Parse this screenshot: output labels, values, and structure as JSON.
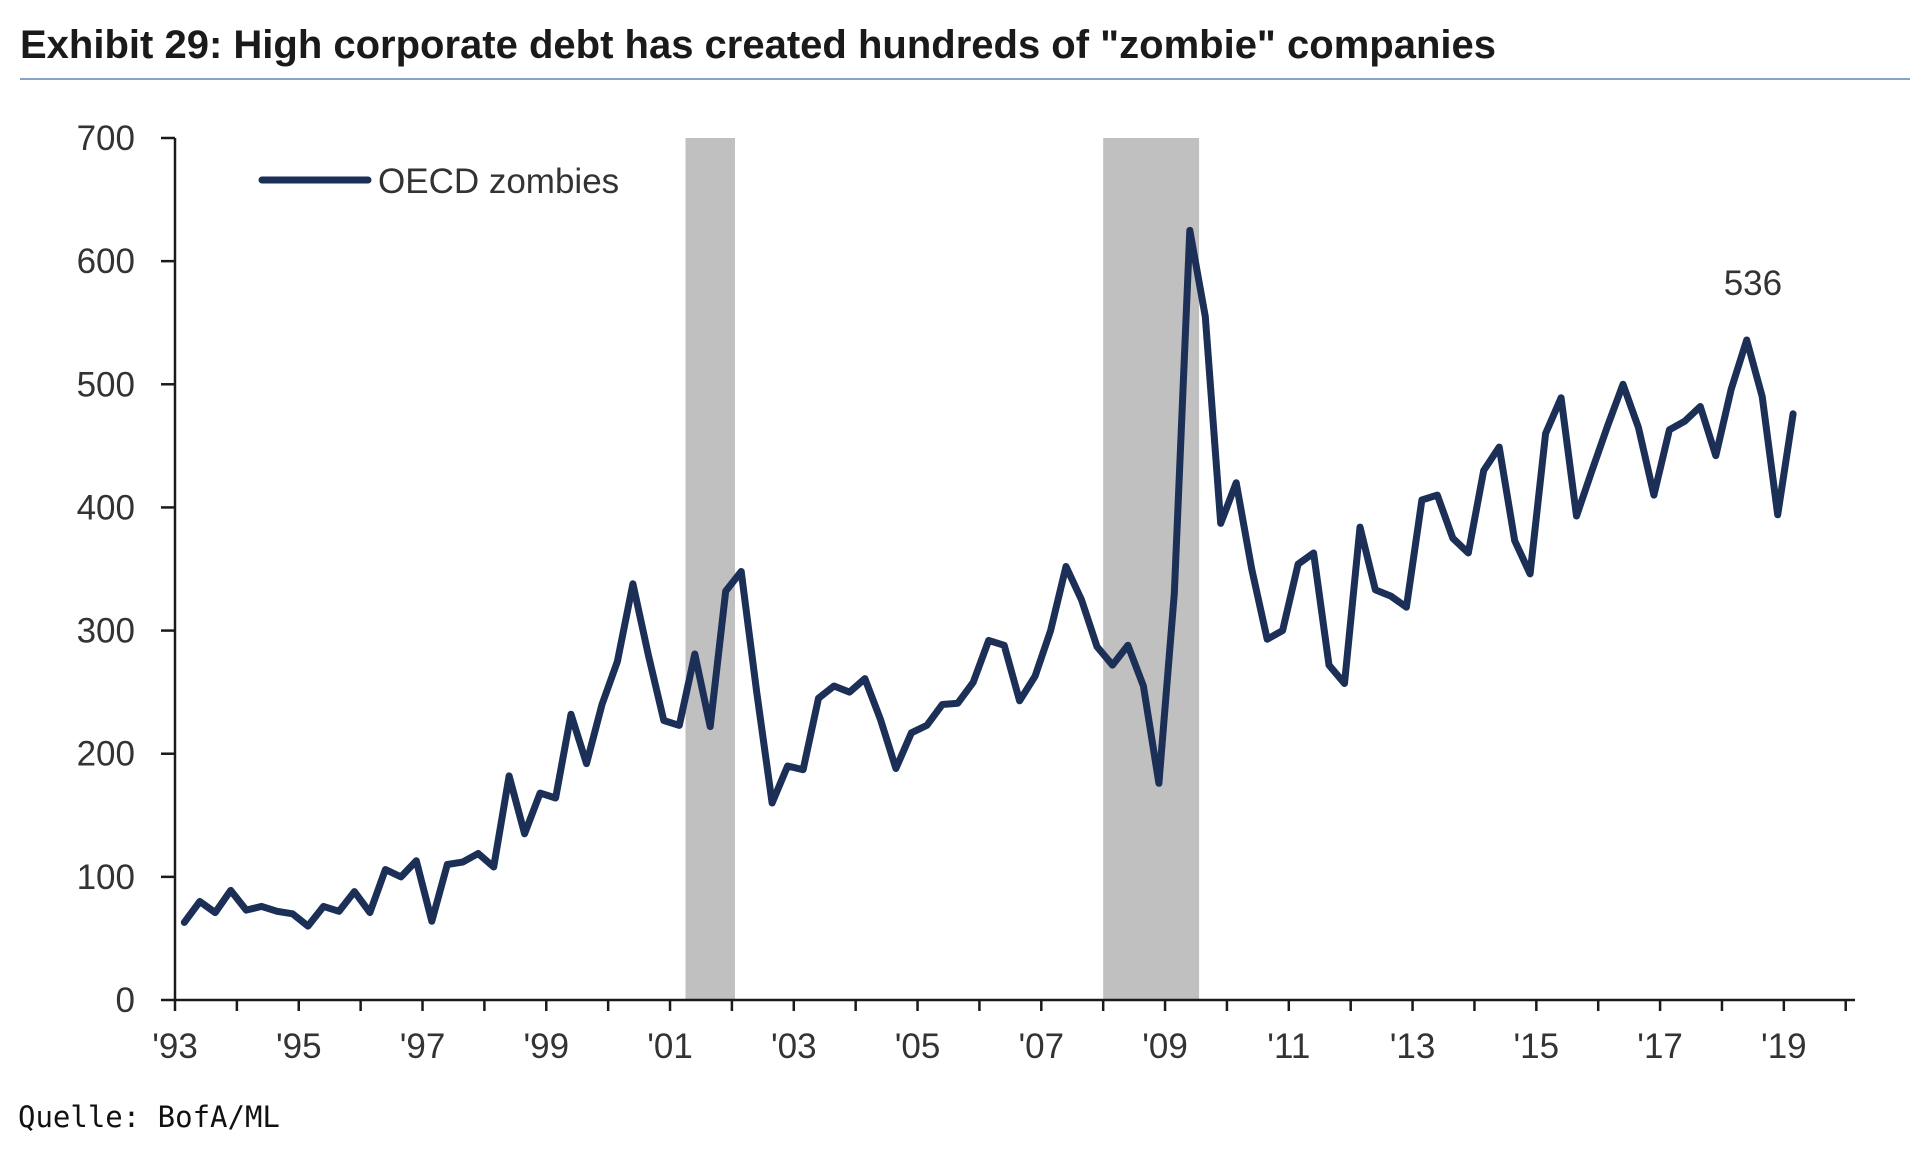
{
  "title": "Exhibit 29: High corporate debt has created hundreds of \"zombie\" companies",
  "source": "Quelle: BofA/ML",
  "colors": {
    "series": "#1b2f57",
    "recession": "#c0c0c0",
    "title_rule": "#8aa2c8",
    "axis": "#1a1a1a"
  },
  "chart_data": {
    "type": "line",
    "xlim": [
      1993,
      2020.15
    ],
    "ylim": [
      0,
      700
    ],
    "y_ticks": [
      0,
      100,
      200,
      300,
      400,
      500,
      600,
      700
    ],
    "x_ticks": [
      {
        "value": 1993,
        "label": "'93"
      },
      {
        "value": 1995,
        "label": "'95"
      },
      {
        "value": 1997,
        "label": "'97"
      },
      {
        "value": 1999,
        "label": "'99"
      },
      {
        "value": 2001,
        "label": "'01"
      },
      {
        "value": 2003,
        "label": "'03"
      },
      {
        "value": 2005,
        "label": "'05"
      },
      {
        "value": 2007,
        "label": "'07"
      },
      {
        "value": 2009,
        "label": "'09"
      },
      {
        "value": 2011,
        "label": "'11"
      },
      {
        "value": 2013,
        "label": "'13"
      },
      {
        "value": 2015,
        "label": "'15"
      },
      {
        "value": 2017,
        "label": "'17"
      },
      {
        "value": 2019,
        "label": "'19"
      }
    ],
    "recessions": [
      [
        2001.25,
        2002.05
      ],
      [
        2008.0,
        2009.55
      ]
    ],
    "legend": {
      "position": "top-left",
      "entries": [
        "OECD zombies"
      ]
    },
    "annotations": [
      {
        "x": 2018.5,
        "y": 536,
        "text": "536"
      }
    ],
    "series": [
      {
        "name": "OECD zombies",
        "x": [
          1993.15,
          1993.4,
          1993.65,
          1993.9,
          1994.15,
          1994.4,
          1994.65,
          1994.9,
          1995.15,
          1995.4,
          1995.65,
          1995.9,
          1996.15,
          1996.4,
          1996.65,
          1996.9,
          1997.15,
          1997.4,
          1997.65,
          1997.9,
          1998.15,
          1998.4,
          1998.65,
          1998.9,
          1999.15,
          1999.4,
          1999.65,
          1999.9,
          2000.15,
          2000.4,
          2000.65,
          2000.9,
          2001.15,
          2001.4,
          2001.65,
          2001.9,
          2002.15,
          2002.4,
          2002.65,
          2002.9,
          2003.15,
          2003.4,
          2003.65,
          2003.9,
          2004.15,
          2004.4,
          2004.65,
          2004.9,
          2005.15,
          2005.4,
          2005.65,
          2005.9,
          2006.15,
          2006.4,
          2006.65,
          2006.9,
          2007.15,
          2007.4,
          2007.65,
          2007.9,
          2008.15,
          2008.4,
          2008.65,
          2008.9,
          2009.15,
          2009.4,
          2009.65,
          2009.9,
          2010.15,
          2010.4,
          2010.65,
          2010.9,
          2011.15,
          2011.4,
          2011.65,
          2011.9,
          2012.15,
          2012.4,
          2012.65,
          2012.9,
          2013.15,
          2013.4,
          2013.65,
          2013.9,
          2014.15,
          2014.4,
          2014.65,
          2014.9,
          2015.15,
          2015.4,
          2015.65,
          2015.9,
          2016.15,
          2016.4,
          2016.65,
          2016.9,
          2017.15,
          2017.4,
          2017.65,
          2017.9,
          2018.15,
          2018.4,
          2018.65,
          2018.9,
          2019.15
        ],
        "values": [
          63,
          80,
          71,
          89,
          73,
          76,
          72,
          70,
          60,
          76,
          72,
          88,
          71,
          106,
          100,
          113,
          64,
          110,
          112,
          119,
          108,
          182,
          135,
          168,
          164,
          232,
          192,
          240,
          275,
          338,
          280,
          227,
          223,
          281,
          222,
          332,
          348,
          250,
          160,
          190,
          187,
          245,
          255,
          250,
          261,
          228,
          188,
          217,
          223,
          240,
          241,
          258,
          292,
          288,
          243,
          263,
          300,
          352,
          325,
          287,
          272,
          288,
          255,
          176,
          330,
          625,
          555,
          387,
          420,
          350,
          293,
          300,
          354,
          363,
          272,
          257,
          384,
          333,
          328,
          319,
          406,
          410,
          375,
          363,
          430,
          449,
          373,
          346,
          460,
          489,
          393,
          430,
          466,
          500,
          465,
          410,
          463,
          470,
          482,
          442,
          496,
          536,
          490,
          394,
          476
        ]
      }
    ]
  }
}
